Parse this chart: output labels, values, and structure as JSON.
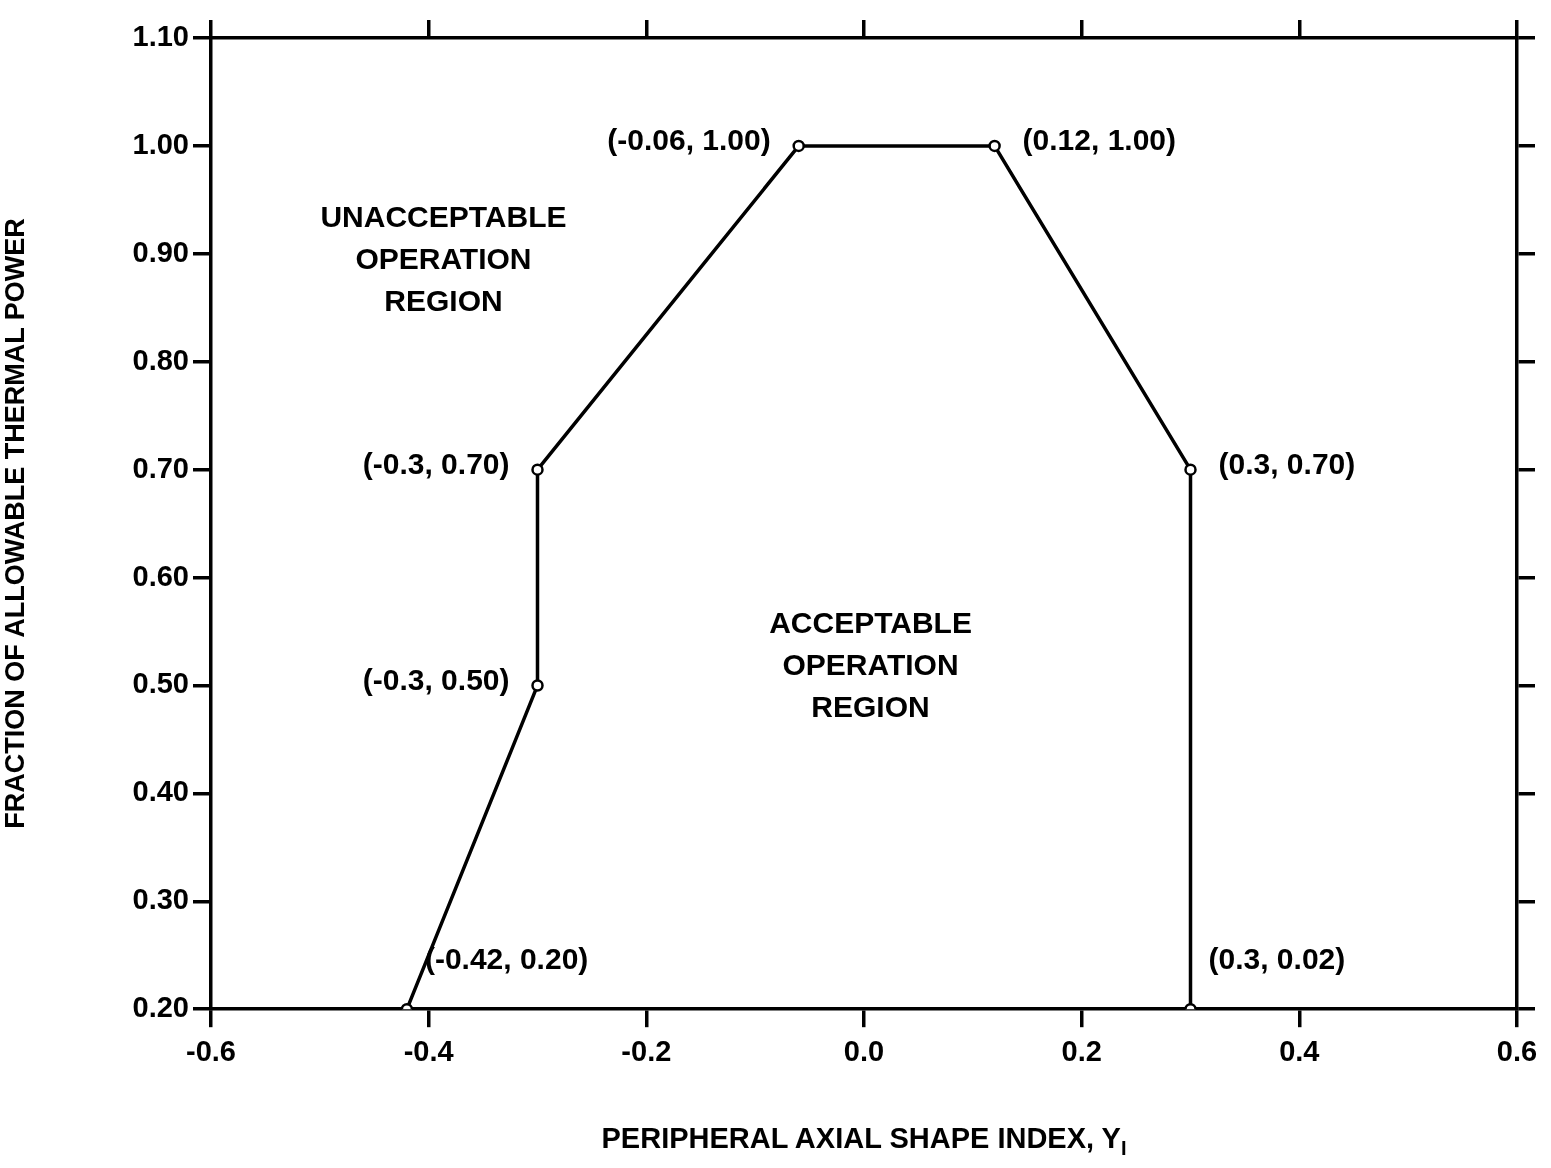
{
  "chart_data": {
    "type": "line",
    "xlabel": "PERIPHERAL AXIAL SHAPE INDEX, Y$_{I}$",
    "ylabel": "FRACTION OF ALLOWABLE THERMAL POWER",
    "x": [
      -0.42,
      -0.3,
      -0.3,
      -0.06,
      0.12,
      0.3,
      0.3
    ],
    "series": [
      {
        "color": "#000000",
        "values": [
          0.2,
          0.5,
          0.7,
          1.0,
          1.0,
          0.7,
          0.2
        ]
      }
    ],
    "marker": "circle",
    "line_style": "solid",
    "xlim": [
      -0.6,
      0.6
    ],
    "xticks": [
      -0.6,
      -0.4,
      -0.2,
      {
        "value": 0,
        "label": "0.0"
      },
      0.2,
      0.4,
      0.6
    ],
    "ylim": [
      0.2,
      1.1
    ],
    "yticks": [
      {
        "value": 0.2,
        "label": "0.20"
      },
      {
        "value": 0.3,
        "label": "0.30"
      },
      {
        "value": 0.4,
        "label": "0.40"
      },
      {
        "value": 0.5,
        "label": "0.50"
      },
      {
        "value": 0.6,
        "label": "0.60"
      },
      {
        "value": 0.7,
        "label": "0.70"
      },
      {
        "value": 0.8,
        "label": "0.80"
      },
      {
        "value": 0.9,
        "label": "0.90"
      },
      {
        "value": 1.0,
        "label": "1.00"
      },
      {
        "value": 1.1,
        "label": "1.10"
      }
    ],
    "annotations": [
      {
        "text": "(-0.42, 0.20)",
        "x": -0.42,
        "y": 0.2
      },
      {
        "text": "(-0.3, 0.50)",
        "x": -0.3,
        "y": 0.5
      },
      {
        "text": "(-0.3, 0.70)",
        "x": -0.3,
        "y": 0.7
      },
      {
        "text": "(-0.06, 1.00)",
        "x": -0.06,
        "y": 1.0
      },
      {
        "text": "(0.12, 1.00)",
        "x": 0.12,
        "y": 1.0
      },
      {
        "text": "(0.3, 0.70)",
        "x": 0.3,
        "y": 0.7
      },
      {
        "text": "(0.3, 0.02)",
        "x": 0.3,
        "y": 0.2
      },
      "UNACCEPTABLE OPERATION REGION",
      "ACCEPTABLE OPERATION REGION"
    ]
  }
}
